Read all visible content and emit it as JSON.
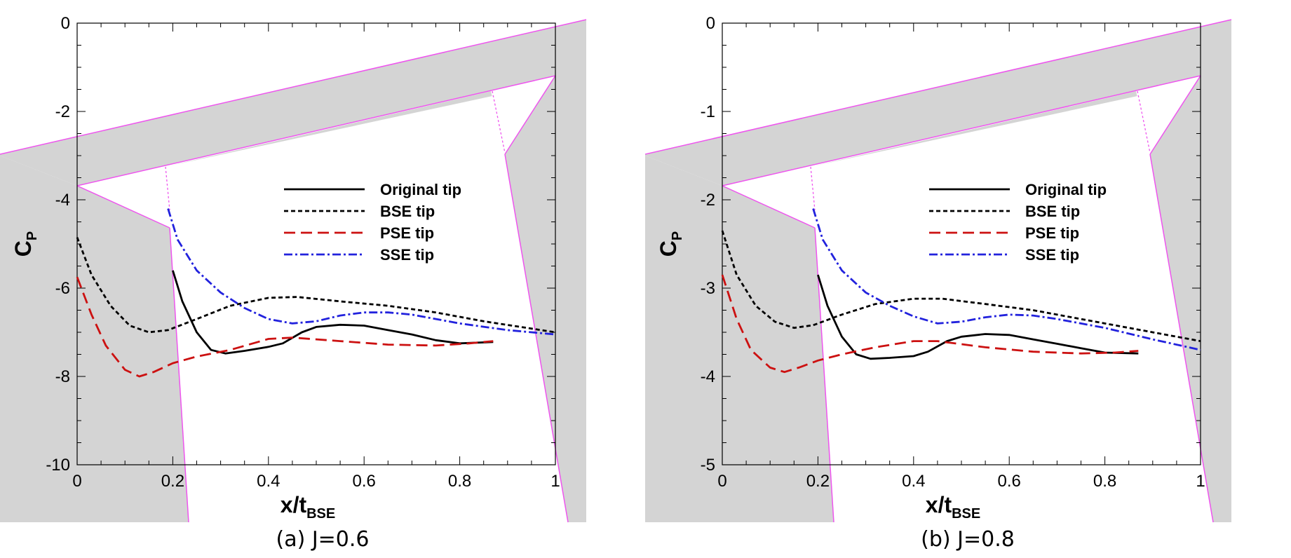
{
  "chart_data": [
    {
      "type": "line",
      "caption": "(a) J=0.6",
      "xlabel": "x/t",
      "xlabel_sub": "BSE",
      "ylabel": "C",
      "ylabel_sub": "P",
      "xlim": [
        0,
        1
      ],
      "ylim": [
        -10,
        0
      ],
      "xticks": [
        0,
        0.2,
        0.4,
        0.6,
        0.8,
        1
      ],
      "xtick_labels": [
        "0",
        "0.2",
        "0.4",
        "0.6",
        "0.8",
        "1"
      ],
      "yticks": [
        0,
        -2,
        -4,
        -6,
        -8,
        -10
      ],
      "ytick_labels": [
        "0",
        "-2",
        "-4",
        "-6",
        "-8",
        "-10"
      ],
      "legend_position": "center-right",
      "series": [
        {
          "name": "Original tip",
          "color": "#000000",
          "dash": "solid",
          "x": [
            0.2,
            0.22,
            0.25,
            0.28,
            0.31,
            0.35,
            0.4,
            0.43,
            0.47,
            0.5,
            0.55,
            0.6,
            0.65,
            0.7,
            0.75,
            0.8,
            0.87
          ],
          "y": [
            -5.6,
            -6.3,
            -7.0,
            -7.4,
            -7.48,
            -7.42,
            -7.33,
            -7.25,
            -7.0,
            -6.88,
            -6.83,
            -6.85,
            -6.95,
            -7.05,
            -7.18,
            -7.25,
            -7.22
          ]
        },
        {
          "name": "BSE tip",
          "color": "#000000",
          "dash": "short",
          "x": [
            0,
            0.03,
            0.07,
            0.11,
            0.15,
            0.19,
            0.25,
            0.32,
            0.4,
            0.46,
            0.55,
            0.65,
            0.75,
            0.85,
            1.0
          ],
          "y": [
            -4.85,
            -5.7,
            -6.4,
            -6.85,
            -7.0,
            -6.95,
            -6.7,
            -6.4,
            -6.22,
            -6.2,
            -6.3,
            -6.4,
            -6.55,
            -6.75,
            -7.0
          ]
        },
        {
          "name": "PSE tip",
          "color": "#cc1111",
          "dash": "long",
          "x": [
            0,
            0.03,
            0.06,
            0.1,
            0.13,
            0.16,
            0.2,
            0.25,
            0.32,
            0.4,
            0.45,
            0.55,
            0.65,
            0.75,
            0.82,
            0.87
          ],
          "y": [
            -5.75,
            -6.6,
            -7.3,
            -7.85,
            -8.0,
            -7.9,
            -7.7,
            -7.55,
            -7.4,
            -7.15,
            -7.12,
            -7.2,
            -7.28,
            -7.3,
            -7.25,
            -7.2
          ]
        },
        {
          "name": "SSE tip",
          "color": "#2222dd",
          "dash": "dashdot",
          "x": [
            0.19,
            0.21,
            0.25,
            0.3,
            0.35,
            0.4,
            0.45,
            0.5,
            0.55,
            0.6,
            0.65,
            0.7,
            0.8,
            0.9,
            1.0
          ],
          "y": [
            -4.2,
            -4.9,
            -5.6,
            -6.1,
            -6.45,
            -6.7,
            -6.8,
            -6.75,
            -6.62,
            -6.55,
            -6.55,
            -6.6,
            -6.8,
            -6.95,
            -7.05
          ]
        }
      ]
    },
    {
      "type": "line",
      "caption": "(b) J=0.8",
      "xlabel": "x/t",
      "xlabel_sub": "BSE",
      "ylabel": "C",
      "ylabel_sub": "P",
      "xlim": [
        0,
        1
      ],
      "ylim": [
        -5,
        0
      ],
      "xticks": [
        0,
        0.2,
        0.4,
        0.6,
        0.8,
        1
      ],
      "xtick_labels": [
        "0",
        "0.2",
        "0.4",
        "0.6",
        "0.8",
        "1"
      ],
      "yticks": [
        0,
        -1,
        -2,
        -3,
        -4,
        -5
      ],
      "ytick_labels": [
        "0",
        "-1",
        "-2",
        "-3",
        "-4",
        "-5"
      ],
      "legend_position": "center-right",
      "series": [
        {
          "name": "Original tip",
          "color": "#000000",
          "dash": "solid",
          "x": [
            0.2,
            0.22,
            0.25,
            0.28,
            0.31,
            0.35,
            0.4,
            0.43,
            0.47,
            0.5,
            0.55,
            0.6,
            0.65,
            0.7,
            0.75,
            0.8,
            0.87
          ],
          "y": [
            -2.85,
            -3.2,
            -3.55,
            -3.75,
            -3.8,
            -3.79,
            -3.77,
            -3.72,
            -3.6,
            -3.55,
            -3.52,
            -3.53,
            -3.58,
            -3.63,
            -3.68,
            -3.73,
            -3.74
          ]
        },
        {
          "name": "BSE tip",
          "color": "#000000",
          "dash": "short",
          "x": [
            0,
            0.03,
            0.07,
            0.11,
            0.15,
            0.19,
            0.25,
            0.32,
            0.4,
            0.46,
            0.55,
            0.65,
            0.75,
            0.85,
            1.0
          ],
          "y": [
            -2.35,
            -2.85,
            -3.2,
            -3.38,
            -3.45,
            -3.42,
            -3.3,
            -3.18,
            -3.12,
            -3.12,
            -3.18,
            -3.25,
            -3.35,
            -3.45,
            -3.6
          ]
        },
        {
          "name": "PSE tip",
          "color": "#cc1111",
          "dash": "long",
          "x": [
            0,
            0.03,
            0.06,
            0.1,
            0.13,
            0.16,
            0.2,
            0.25,
            0.32,
            0.4,
            0.45,
            0.55,
            0.65,
            0.75,
            0.82,
            0.87
          ],
          "y": [
            -2.85,
            -3.35,
            -3.7,
            -3.9,
            -3.95,
            -3.9,
            -3.82,
            -3.75,
            -3.67,
            -3.6,
            -3.6,
            -3.67,
            -3.72,
            -3.74,
            -3.73,
            -3.71
          ]
        },
        {
          "name": "SSE tip",
          "color": "#2222dd",
          "dash": "dashdot",
          "x": [
            0.19,
            0.21,
            0.25,
            0.3,
            0.35,
            0.4,
            0.45,
            0.5,
            0.55,
            0.6,
            0.65,
            0.7,
            0.8,
            0.9,
            1.0
          ],
          "y": [
            -2.1,
            -2.45,
            -2.8,
            -3.05,
            -3.2,
            -3.32,
            -3.4,
            -3.38,
            -3.33,
            -3.3,
            -3.31,
            -3.35,
            -3.45,
            -3.58,
            -3.7
          ]
        }
      ]
    }
  ]
}
